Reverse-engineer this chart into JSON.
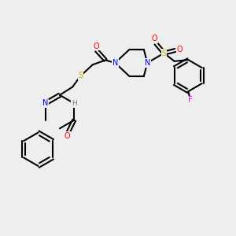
{
  "background_color": "#eeeeee",
  "bond_color": "#000000",
  "atom_colors": {
    "N": "#0000ff",
    "O": "#ff0000",
    "S": "#ccaa00",
    "F": "#ff00ff",
    "H": "#777777",
    "C": "#000000"
  },
  "figsize": [
    3.0,
    3.0
  ],
  "dpi": 100
}
